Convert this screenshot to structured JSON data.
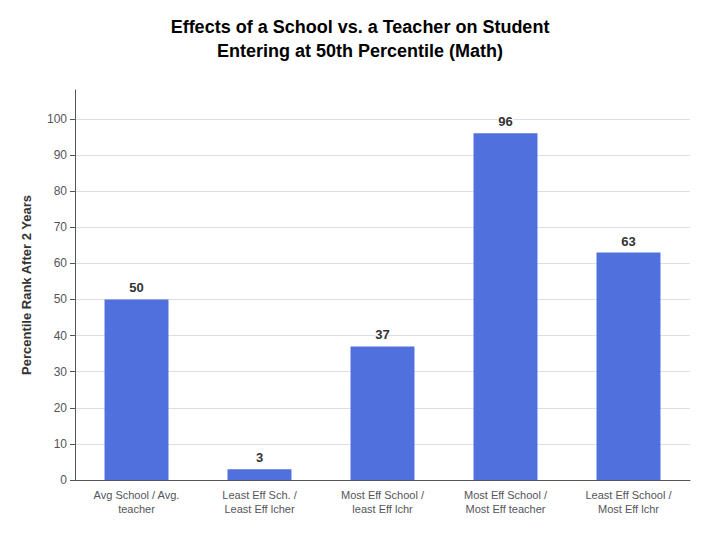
{
  "chart_data": {
    "type": "bar",
    "title": "Effects of a School vs. a Teacher on Student\nEntering at 50th Percentile (Math)",
    "categories": [
      "Avg School / Avg.\nteacher",
      "Least Eff Sch. /\nLeast Eff lcher",
      "Most Eff School /\nleast Eff lchr",
      "Most Eff School /\nMost Eff teacher",
      "Least Eff School /\nMost Eff lchr"
    ],
    "values": [
      50,
      3,
      37,
      96,
      63
    ],
    "ylabel": "Percentile Rank After 2 Years",
    "ylim": [
      0,
      108
    ],
    "yticks": [
      0,
      10,
      20,
      30,
      40,
      50,
      60,
      70,
      80,
      90,
      100
    ],
    "grid": true,
    "data_labels": true
  }
}
